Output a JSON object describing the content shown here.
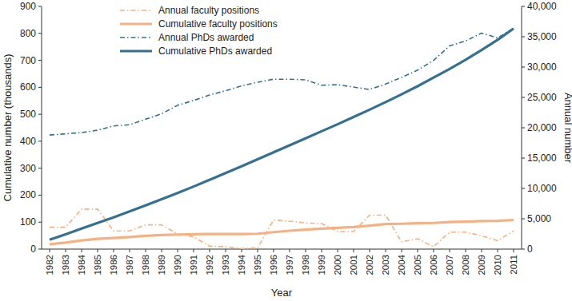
{
  "chart_data": {
    "type": "line",
    "x_label": "Year",
    "y_label": "Cumulative number (thousands)",
    "y2_label": "Annual number",
    "categories": [
      "1982",
      "1983",
      "1984",
      "1985",
      "1986",
      "1987",
      "1988",
      "1989",
      "1990",
      "1991",
      "1992",
      "1993",
      "1994",
      "1995",
      "1996",
      "1997",
      "1998",
      "1999",
      "2000",
      "2001",
      "2002",
      "2003",
      "2004",
      "2005",
      "2006",
      "2007",
      "2008",
      "2009",
      "2010",
      "2011"
    ],
    "ylim": [
      0,
      900
    ],
    "yticks": [
      0,
      100,
      200,
      300,
      400,
      500,
      600,
      700,
      800,
      900
    ],
    "y2lim": [
      0,
      40000
    ],
    "y2ticks": [
      0,
      {
        "value": 5000,
        "label": "5,000"
      },
      {
        "value": 10000,
        "label": "10,000"
      },
      {
        "value": 15000,
        "label": "15,000"
      },
      {
        "value": 20000,
        "label": "20,000"
      },
      {
        "value": 25000,
        "label": "25,000"
      },
      {
        "value": 30000,
        "label": "30,000"
      },
      {
        "value": 35000,
        "label": "35,000"
      },
      {
        "value": 40000,
        "label": "40,000"
      }
    ],
    "grid": false,
    "legend": "top",
    "series": [
      {
        "name": "Annual faculty positions",
        "color": "#f5b183",
        "line_style": "dashdot",
        "axis": "y2",
        "values": [
          3600,
          3600,
          6600,
          6600,
          3000,
          3000,
          4000,
          4000,
          2500,
          2000,
          500,
          400,
          100,
          200,
          4800,
          4600,
          4300,
          4200,
          2900,
          2900,
          5600,
          5600,
          1200,
          1700,
          400,
          2800,
          2800,
          2200,
          1400,
          3000
        ]
      },
      {
        "name": "Cumulative faculty positions",
        "color": "#f5b183",
        "line_style": "solid",
        "values": [
          18,
          24,
          32,
          38,
          41,
          45,
          49,
          52,
          54,
          55,
          56,
          56,
          56,
          57,
          63,
          68,
          72,
          76,
          79,
          82,
          87,
          93,
          94,
          96,
          97,
          100,
          102,
          104,
          105,
          108
        ]
      },
      {
        "name": "Annual PhDs awarded",
        "color": "#35718f",
        "line_style": "dashdot",
        "axis": "y2",
        "values": [
          18800,
          19000,
          19200,
          19600,
          20300,
          20500,
          21400,
          22300,
          23700,
          24500,
          25400,
          26100,
          26900,
          27500,
          28000,
          28000,
          27900,
          27000,
          27100,
          26700,
          26300,
          27200,
          28300,
          29500,
          31100,
          33500,
          34300,
          35600,
          34800,
          36400
        ]
      },
      {
        "name": "Cumulative PhDs awarded",
        "color": "#35718f",
        "line_style": "solid",
        "values": [
          35,
          55,
          76,
          97,
          118,
          140,
          162,
          185,
          208,
          232,
          257,
          282,
          307,
          333,
          359,
          385,
          411,
          437,
          463,
          490,
          517,
          545,
          574,
          604,
          636,
          668,
          702,
          738,
          776,
          818
        ]
      }
    ]
  }
}
